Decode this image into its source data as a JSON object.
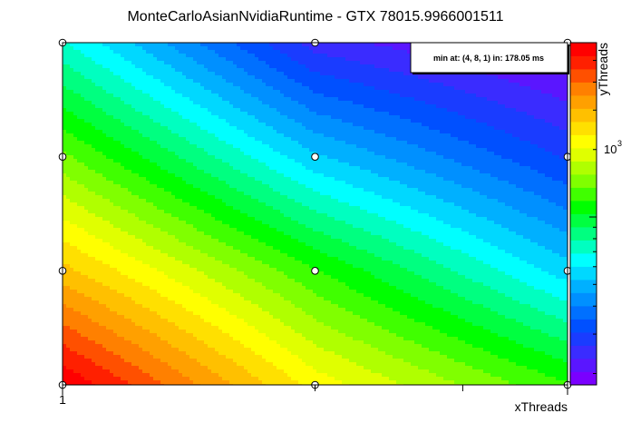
{
  "chart_data": {
    "type": "heatmap",
    "title": "MonteCarloAsianNvidiaRuntime - GTX 78015.9966001511",
    "xlabel": "xThreads",
    "ylabel": "yThreads",
    "x_tick_labels": [
      "1"
    ],
    "colorbar_tick_labels": [
      "10"
    ],
    "colorbar_exponent": "3",
    "annotation": "min at: (4, 8, 1) in: 178.05 ms",
    "x_levels": [
      1,
      2,
      4
    ],
    "y_levels": [
      1,
      2,
      4,
      8
    ],
    "log_x": true,
    "log_y": true,
    "log_z": true,
    "z_range_ms": [
      178,
      6000
    ],
    "points": [
      {
        "x": 1,
        "y": 1,
        "z_ms": 6000
      },
      {
        "x": 2,
        "y": 1,
        "z_ms": 2200
      },
      {
        "x": 4,
        "y": 1,
        "z_ms": 1200
      },
      {
        "x": 1,
        "y": 2,
        "z_ms": 2800
      },
      {
        "x": 2,
        "y": 2,
        "z_ms": 1200
      },
      {
        "x": 4,
        "y": 2,
        "z_ms": 560
      },
      {
        "x": 1,
        "y": 4,
        "z_ms": 1400
      },
      {
        "x": 2,
        "y": 4,
        "z_ms": 540
      },
      {
        "x": 4,
        "y": 4,
        "z_ms": 300
      },
      {
        "x": 1,
        "y": 8,
        "z_ms": 700
      },
      {
        "x": 2,
        "y": 8,
        "z_ms": 250
      },
      {
        "x": 4,
        "y": 8,
        "z_ms": 178.05
      }
    ],
    "palette": [
      "#7a00ff",
      "#5a16ff",
      "#3a2cff",
      "#1a3cff",
      "#0050ff",
      "#0070ff",
      "#0090ff",
      "#00b0ff",
      "#00d8ff",
      "#00ffff",
      "#00ffc0",
      "#00ff80",
      "#00ff40",
      "#00ff00",
      "#40ff00",
      "#80ff00",
      "#b0ff00",
      "#e0ff00",
      "#ffff00",
      "#ffe000",
      "#ffc000",
      "#ffa000",
      "#ff8000",
      "#ff5000",
      "#ff2000",
      "#ff0000"
    ],
    "grid": false
  }
}
